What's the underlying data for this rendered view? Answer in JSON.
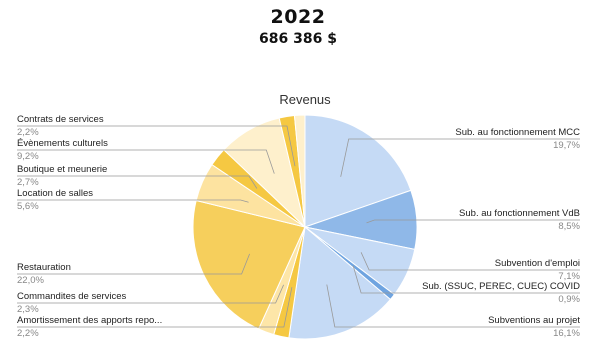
{
  "header": {
    "year": "2022",
    "total": "686 386 $"
  },
  "chart_data": {
    "type": "pie",
    "title": "Revenus",
    "slices": [
      {
        "label": "Sub. au fonctionnement MCC",
        "value": 19.7,
        "display": "19,7%",
        "color": "#c5daf5"
      },
      {
        "label": "Sub. au fonctionnement VdB",
        "value": 8.5,
        "display": "8,5%",
        "color": "#8fb8e8"
      },
      {
        "label": "Subvention d'emploi",
        "value": 7.1,
        "display": "7,1%",
        "color": "#c5daf5"
      },
      {
        "label": "Sub. (SSUC, PEREC, CUEC) COVID",
        "value": 0.9,
        "display": "0,9%",
        "color": "#6fa4e0"
      },
      {
        "label": "Subventions au projet",
        "value": 16.1,
        "display": "16,1%",
        "color": "#c5daf5"
      },
      {
        "label": "Amortissement des apports repo...",
        "value": 2.2,
        "display": "2,2%",
        "color": "#f5c842"
      },
      {
        "label": "Commandites de services",
        "value": 2.3,
        "display": "2,3%",
        "color": "#fde6a8"
      },
      {
        "label": "Restauration",
        "value": 22.0,
        "display": "22,0%",
        "color": "#f6cf5c"
      },
      {
        "label": "Location de salles",
        "value": 5.6,
        "display": "5,6%",
        "color": "#fde3a0"
      },
      {
        "label": "Boutique et meunerie",
        "value": 2.7,
        "display": "2,7%",
        "color": "#f5c842"
      },
      {
        "label": "Évènements culturels",
        "value": 9.2,
        "display": "9,2%",
        "color": "#fef0cc"
      },
      {
        "label": "Contrats de services",
        "value": 2.2,
        "display": "2,2%",
        "color": "#f5c842"
      },
      {
        "label": "",
        "value": 1.5,
        "display": "",
        "color": "#fef0cc"
      }
    ]
  }
}
